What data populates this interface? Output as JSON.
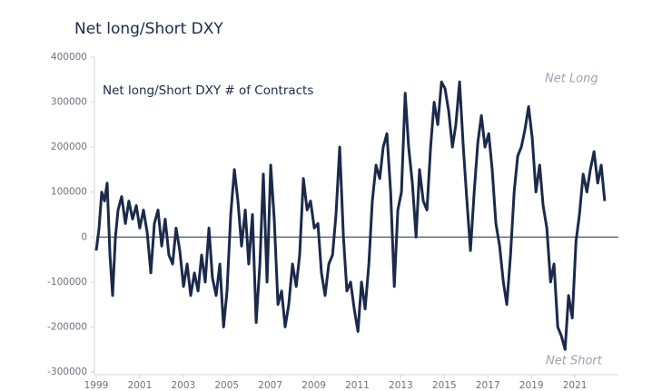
{
  "chart_data": {
    "type": "line",
    "title": "Net long/Short DXY",
    "subtitle": "Net long/Short DXY # of Contracts",
    "annotations": [
      "Net Long",
      "Net Short"
    ],
    "xlim": [
      1999,
      2023
    ],
    "xticks": [
      1999,
      2001,
      2003,
      2005,
      2007,
      2009,
      2011,
      2013,
      2015,
      2017,
      2019,
      2021
    ],
    "ylim": [
      -300000,
      400000
    ],
    "yticks": [
      -300000,
      -200000,
      -100000,
      0,
      100000,
      200000,
      300000,
      400000
    ],
    "zero_line": true,
    "series": [
      {
        "color": "#1b2a4b",
        "x": [
          1999.0,
          1999.13,
          1999.25,
          1999.38,
          1999.5,
          1999.63,
          1999.75,
          1999.88,
          2000.0,
          2000.17,
          2000.34,
          2000.5,
          2000.67,
          2000.84,
          2001.0,
          2001.17,
          2001.34,
          2001.51,
          2001.67,
          2001.84,
          2002.01,
          2002.17,
          2002.34,
          2002.51,
          2002.67,
          2002.84,
          2003.01,
          2003.18,
          2003.34,
          2003.51,
          2003.68,
          2003.84,
          2004.01,
          2004.18,
          2004.34,
          2004.51,
          2004.68,
          2004.85,
          2005.01,
          2005.18,
          2005.35,
          2005.51,
          2005.68,
          2005.85,
          2006.01,
          2006.18,
          2006.35,
          2006.52,
          2006.68,
          2006.85,
          2007.02,
          2007.18,
          2007.35,
          2007.52,
          2007.68,
          2007.85,
          2008.02,
          2008.19,
          2008.35,
          2008.52,
          2008.69,
          2008.85,
          2009.02,
          2009.19,
          2009.35,
          2009.52,
          2009.69,
          2009.86,
          2010.02,
          2010.19,
          2010.36,
          2010.52,
          2010.69,
          2010.86,
          2011.03,
          2011.19,
          2011.36,
          2011.53,
          2011.69,
          2011.86,
          2012.03,
          2012.19,
          2012.36,
          2012.53,
          2012.7,
          2012.86,
          2013.03,
          2013.2,
          2013.36,
          2013.53,
          2013.7,
          2013.86,
          2014.03,
          2014.2,
          2014.37,
          2014.53,
          2014.7,
          2014.87,
          2015.03,
          2015.2,
          2015.37,
          2015.53,
          2015.7,
          2015.87,
          2016.04,
          2016.2,
          2016.37,
          2016.54,
          2016.7,
          2016.87,
          2017.04,
          2017.2,
          2017.37,
          2017.54,
          2017.71,
          2017.87,
          2018.04,
          2018.21,
          2018.37,
          2018.54,
          2018.71,
          2018.87,
          2019.04,
          2019.21,
          2019.38,
          2019.54,
          2019.71,
          2019.88,
          2020.04,
          2020.21,
          2020.38,
          2020.55,
          2020.71,
          2020.88,
          2021.05,
          2021.21,
          2021.38,
          2021.55,
          2021.71,
          2021.88,
          2022.05,
          2022.21,
          2022.37
        ],
        "values": [
          -30000,
          20000,
          100000,
          80000,
          120000,
          -40000,
          -130000,
          0,
          60000,
          90000,
          30000,
          80000,
          40000,
          70000,
          20000,
          60000,
          10000,
          -80000,
          30000,
          60000,
          -20000,
          40000,
          -40000,
          -60000,
          20000,
          -30000,
          -110000,
          -60000,
          -130000,
          -80000,
          -120000,
          -40000,
          -100000,
          20000,
          -90000,
          -130000,
          -60000,
          -200000,
          -120000,
          50000,
          150000,
          80000,
          -20000,
          60000,
          -60000,
          50000,
          -190000,
          -60000,
          140000,
          -100000,
          160000,
          40000,
          -150000,
          -120000,
          -200000,
          -150000,
          -60000,
          -110000,
          -40000,
          130000,
          60000,
          80000,
          20000,
          30000,
          -80000,
          -130000,
          -60000,
          -40000,
          50000,
          200000,
          0,
          -120000,
          -100000,
          -160000,
          -210000,
          -100000,
          -160000,
          -60000,
          80000,
          160000,
          130000,
          200000,
          230000,
          100000,
          -110000,
          60000,
          100000,
          320000,
          200000,
          120000,
          0,
          150000,
          80000,
          60000,
          200000,
          300000,
          250000,
          345000,
          330000,
          280000,
          200000,
          250000,
          345000,
          200000,
          80000,
          -30000,
          100000,
          210000,
          270000,
          200000,
          230000,
          150000,
          30000,
          -20000,
          -100000,
          -150000,
          -40000,
          100000,
          180000,
          200000,
          240000,
          290000,
          220000,
          100000,
          160000,
          70000,
          20000,
          -100000,
          -60000,
          -200000,
          -220000,
          -250000,
          -130000,
          -180000,
          -10000,
          50000,
          140000,
          100000,
          150000,
          190000,
          120000,
          160000,
          80000
        ]
      }
    ]
  }
}
